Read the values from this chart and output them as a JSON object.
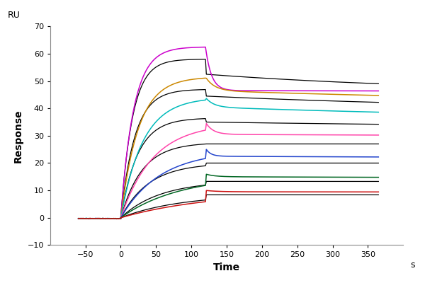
{
  "xlabel": "Time",
  "xlabel_suffix": "s",
  "ylabel": "Response",
  "ylabel_unit": "RU",
  "xlim": [
    -100,
    400
  ],
  "ylim": [
    -10,
    70
  ],
  "xticks": [
    -50,
    0,
    50,
    100,
    150,
    200,
    250,
    300,
    350
  ],
  "yticks": [
    -10,
    0,
    10,
    20,
    30,
    40,
    50,
    60,
    70
  ],
  "t_on": 0,
  "t_off": 120,
  "t_end": 365,
  "baseline_start": -60,
  "background_color": "#ffffff",
  "curves": [
    {
      "color": "#cc00cc",
      "assoc_end": 62.5,
      "peak_extra": 62.5,
      "dissoc_start": 46.5,
      "dissoc_end": 45.5,
      "kon": 0.055,
      "koff_fast": 0.12,
      "koff_slow": 0.0005
    },
    {
      "color": "#000000",
      "assoc_end": 58.0,
      "peak_extra": 58.0,
      "dissoc_start": 52.5,
      "dissoc_end": 45.5,
      "kon": 0.06,
      "koff_fast": 0.0,
      "koff_slow": 0.0028
    },
    {
      "color": "#cc8800",
      "assoc_end": 51.5,
      "peak_extra": 51.5,
      "dissoc_start": 46.5,
      "dissoc_end": 39.5,
      "kon": 0.04,
      "koff_fast": 0.08,
      "koff_slow": 0.0012
    },
    {
      "color": "#000000",
      "assoc_end": 47.0,
      "peak_extra": 47.0,
      "dissoc_start": 44.5,
      "dissoc_end": 39.0,
      "kon": 0.05,
      "koff_fast": 0.0,
      "koff_slow": 0.0022
    },
    {
      "color": "#00bbbb",
      "assoc_end": 44.0,
      "peak_extra": 44.0,
      "dissoc_start": 40.5,
      "dissoc_end": 34.0,
      "kon": 0.032,
      "koff_fast": 0.09,
      "koff_slow": 0.0014
    },
    {
      "color": "#000000",
      "assoc_end": 36.5,
      "peak_extra": 36.5,
      "dissoc_start": 35.0,
      "dissoc_end": 32.5,
      "kon": 0.042,
      "koff_fast": 0.0,
      "koff_slow": 0.0016
    },
    {
      "color": "#ff44aa",
      "assoc_end": 34.5,
      "peak_extra": 35.0,
      "dissoc_start": 30.5,
      "dissoc_end": 29.0,
      "kon": 0.022,
      "koff_fast": 0.1,
      "koff_slow": 0.0008
    },
    {
      "color": "#000000",
      "assoc_end": 27.5,
      "peak_extra": 27.5,
      "dissoc_start": 27.0,
      "dissoc_end": 27.0,
      "kon": 0.033,
      "koff_fast": 0.0,
      "koff_slow": 0.0006
    },
    {
      "color": "#2244cc",
      "assoc_end": 24.5,
      "peak_extra": 25.5,
      "dissoc_start": 22.5,
      "dissoc_end": 20.5,
      "kon": 0.018,
      "koff_fast": 0.15,
      "koff_slow": 0.0006
    },
    {
      "color": "#000000",
      "assoc_end": 20.0,
      "peak_extra": 20.0,
      "dissoc_start": 20.0,
      "dissoc_end": 20.0,
      "kon": 0.025,
      "koff_fast": 0.0,
      "koff_slow": 0.0003
    },
    {
      "color": "#006622",
      "assoc_end": 15.5,
      "peak_extra": 16.0,
      "dissoc_start": 15.0,
      "dissoc_end": 13.5,
      "kon": 0.012,
      "koff_fast": 0.08,
      "koff_slow": 0.0006
    },
    {
      "color": "#000000",
      "assoc_end": 13.5,
      "peak_extra": 13.5,
      "dissoc_start": 13.3,
      "dissoc_end": 13.0,
      "kon": 0.018,
      "koff_fast": 0.0,
      "koff_slow": 0.0003
    },
    {
      "color": "#cc1111",
      "assoc_end": 9.5,
      "peak_extra": 10.0,
      "dissoc_start": 9.5,
      "dissoc_end": 9.0,
      "kon": 0.008,
      "koff_fast": 0.06,
      "koff_slow": 0.0005
    },
    {
      "color": "#000000",
      "assoc_end": 8.5,
      "peak_extra": 8.5,
      "dissoc_start": 8.4,
      "dissoc_end": 8.2,
      "kon": 0.012,
      "koff_fast": 0.0,
      "koff_slow": 0.0002
    }
  ]
}
